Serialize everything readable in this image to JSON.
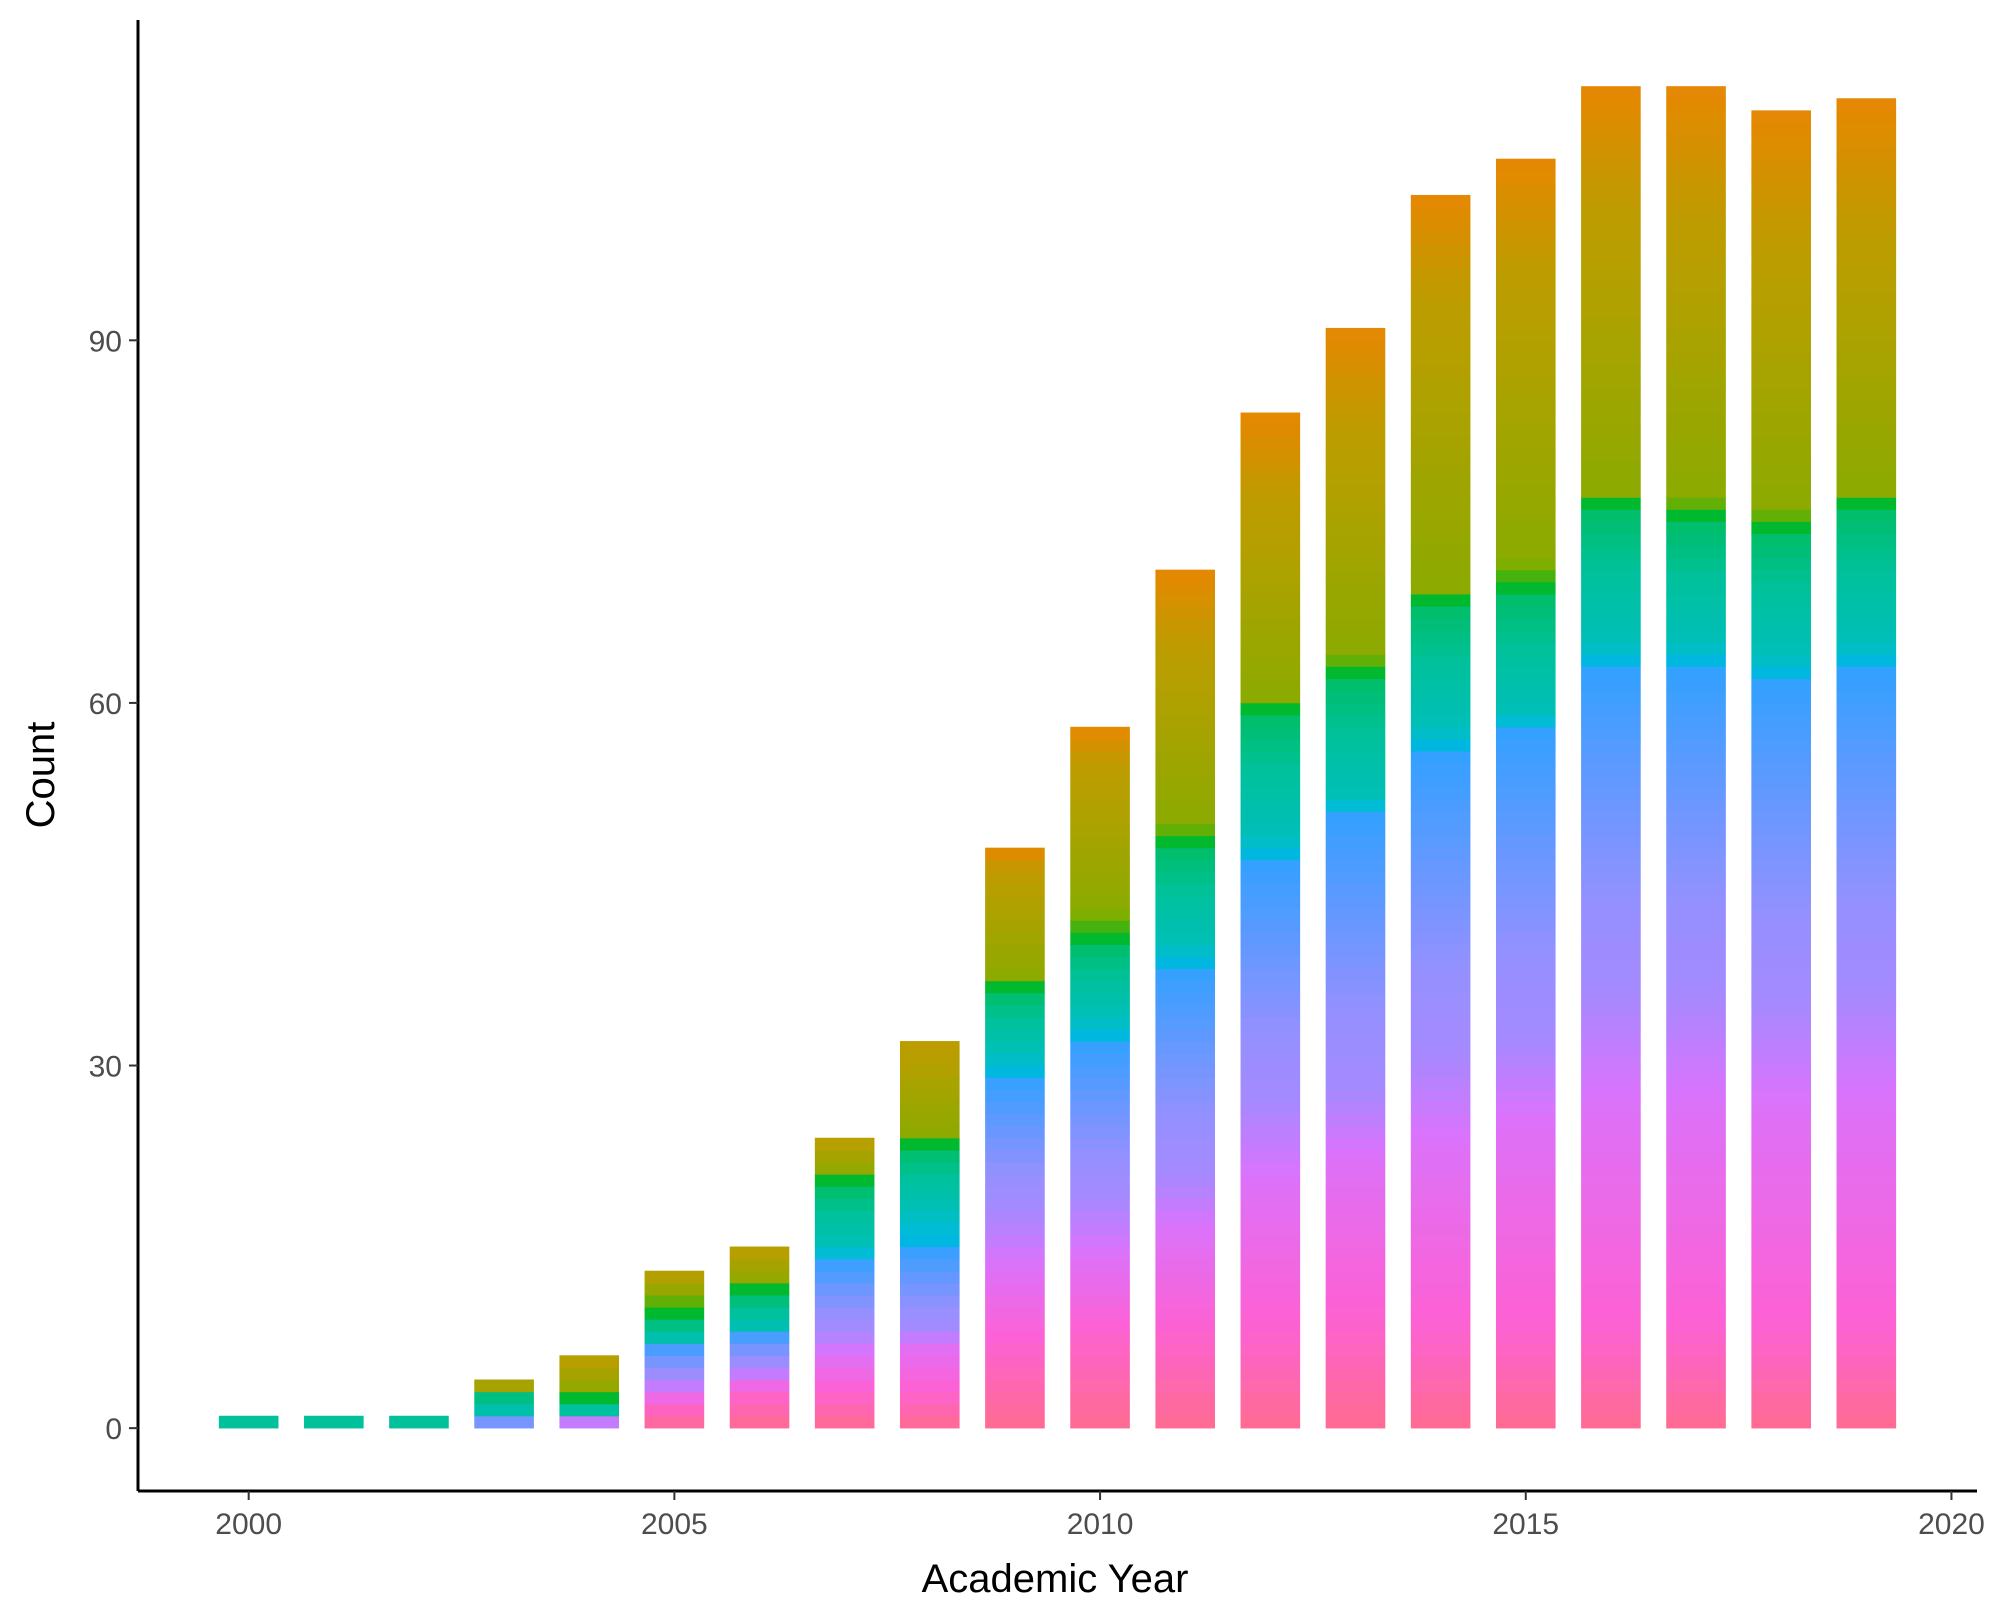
{
  "chart_data": {
    "type": "bar",
    "stacked": true,
    "title": "",
    "xlabel": "Academic Year",
    "ylabel": "Count",
    "x": [
      2000,
      2001,
      2002,
      2003,
      2004,
      2005,
      2006,
      2007,
      2008,
      2009,
      2010,
      2011,
      2012,
      2013,
      2014,
      2015,
      2016,
      2017,
      2018,
      2019
    ],
    "totals": [
      1,
      1,
      1,
      4,
      6,
      13,
      15,
      24,
      32,
      48,
      58,
      71,
      84,
      91,
      102,
      105,
      111,
      111,
      109,
      110
    ],
    "xlim": [
      1998.7,
      2020.3
    ],
    "ylim": [
      -5.2,
      116.5
    ],
    "xticks": [
      2000,
      2005,
      2010,
      2015,
      2020
    ],
    "yticks": [
      0,
      30,
      60,
      90
    ],
    "grid": false,
    "legend": "none",
    "palette": [
      "#FF6C91",
      "#FC61D5",
      "#D874FD",
      "#9590FF",
      "#00A9FF",
      "#00BCD8",
      "#00C19A",
      "#00B81F",
      "#7CAE00",
      "#B79F00",
      "#E38900",
      "#F8766D"
    ],
    "stack_breaks": [
      [],
      [],
      [],
      [
        0,
        0,
        0,
        0,
        1,
        1,
        1,
        3,
        3,
        3,
        4,
        4
      ],
      [
        0,
        0,
        0,
        1,
        1,
        1,
        1,
        2,
        3,
        3,
        6,
        6
      ],
      [
        0,
        2,
        3,
        4,
        7,
        7,
        7,
        9,
        10,
        11,
        13,
        13
      ],
      [
        0,
        3,
        4,
        5,
        8,
        8,
        8,
        11,
        12,
        12,
        15,
        15
      ],
      [
        0,
        3,
        6,
        8,
        14,
        14,
        15,
        20,
        21,
        21,
        24,
        24
      ],
      [
        0,
        3,
        7,
        8,
        15,
        15,
        18,
        23,
        24,
        24,
        32,
        32
      ],
      [
        0,
        7,
        13,
        18,
        29,
        29,
        31,
        36,
        37,
        37,
        46,
        48
      ],
      [
        0,
        8,
        14,
        19,
        32,
        32,
        34,
        40,
        41,
        43,
        55,
        58
      ],
      [
        0,
        8,
        16,
        21,
        38,
        38,
        40,
        48,
        49,
        50,
        65,
        71
      ],
      [
        0,
        8,
        20,
        27,
        47,
        47,
        49,
        59,
        60,
        60,
        77,
        84
      ],
      [
        0,
        9,
        22,
        28,
        51,
        51,
        52,
        62,
        63,
        64,
        83,
        91
      ],
      [
        0,
        8,
        23,
        31,
        56,
        56,
        58,
        68,
        69,
        69,
        94,
        102
      ],
      [
        0,
        8,
        25,
        32,
        58,
        58,
        59,
        69,
        70,
        72,
        96,
        105
      ],
      [
        0,
        8,
        26,
        36,
        63,
        63,
        65,
        76,
        77,
        77,
        101,
        111
      ],
      [
        0,
        8,
        26,
        36,
        63,
        63,
        65,
        75,
        76,
        77,
        100,
        111
      ],
      [
        0,
        8,
        26,
        35,
        62,
        62,
        64,
        74,
        75,
        76,
        98,
        109
      ],
      [
        0,
        8,
        26,
        36,
        63,
        63,
        65,
        76,
        77,
        77,
        99,
        110
      ]
    ],
    "single_segment_color": "#00C19A"
  }
}
